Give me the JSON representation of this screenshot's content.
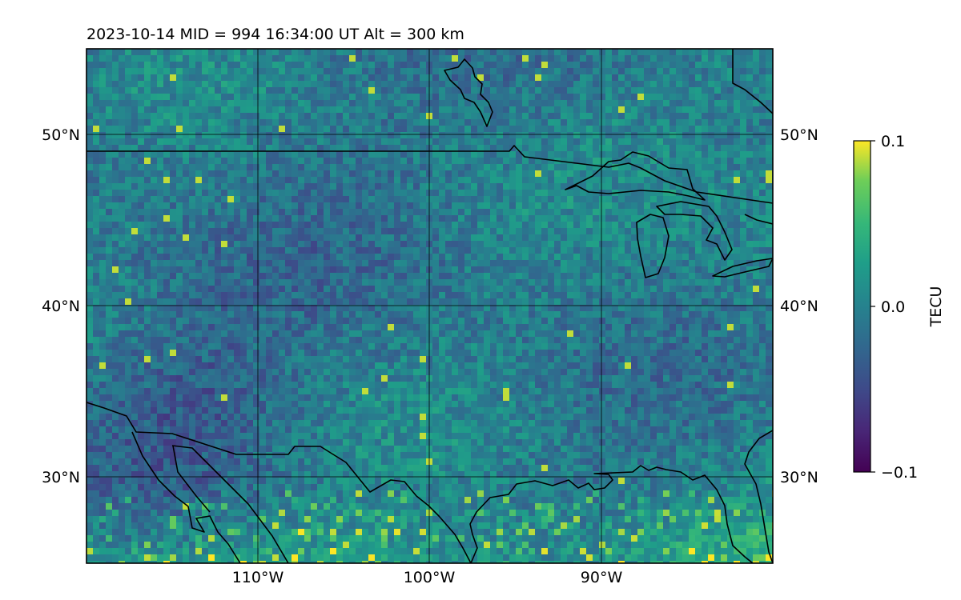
{
  "figure": {
    "title": "2023-10-14  MID = 994    16:34:00  UT  Alt = 300 km"
  },
  "map": {
    "longitude_range_deg": [
      -120,
      -80
    ],
    "latitude_range_deg": [
      25,
      55
    ],
    "lon_ticks": [
      {
        "value": -110,
        "label": "110°W"
      },
      {
        "value": -100,
        "label": "100°W"
      },
      {
        "value": -90,
        "label": "90°W"
      }
    ],
    "lat_ticks": [
      {
        "value": 50,
        "label": "50°N"
      },
      {
        "value": 40,
        "label": "40°N"
      },
      {
        "value": 30,
        "label": "30°N"
      }
    ],
    "gridlines": true,
    "coastlines_and_borders": true,
    "field": "TEC perturbation (detrended)",
    "colormap": "viridis"
  },
  "colorbar": {
    "label": "TECU",
    "vmin": -0.1,
    "vmax": 0.1,
    "ticks": [
      {
        "value": 0.1,
        "label": "0.1"
      },
      {
        "value": 0.0,
        "label": "0.0"
      },
      {
        "value": -0.1,
        "label": "−0.1"
      }
    ]
  }
}
